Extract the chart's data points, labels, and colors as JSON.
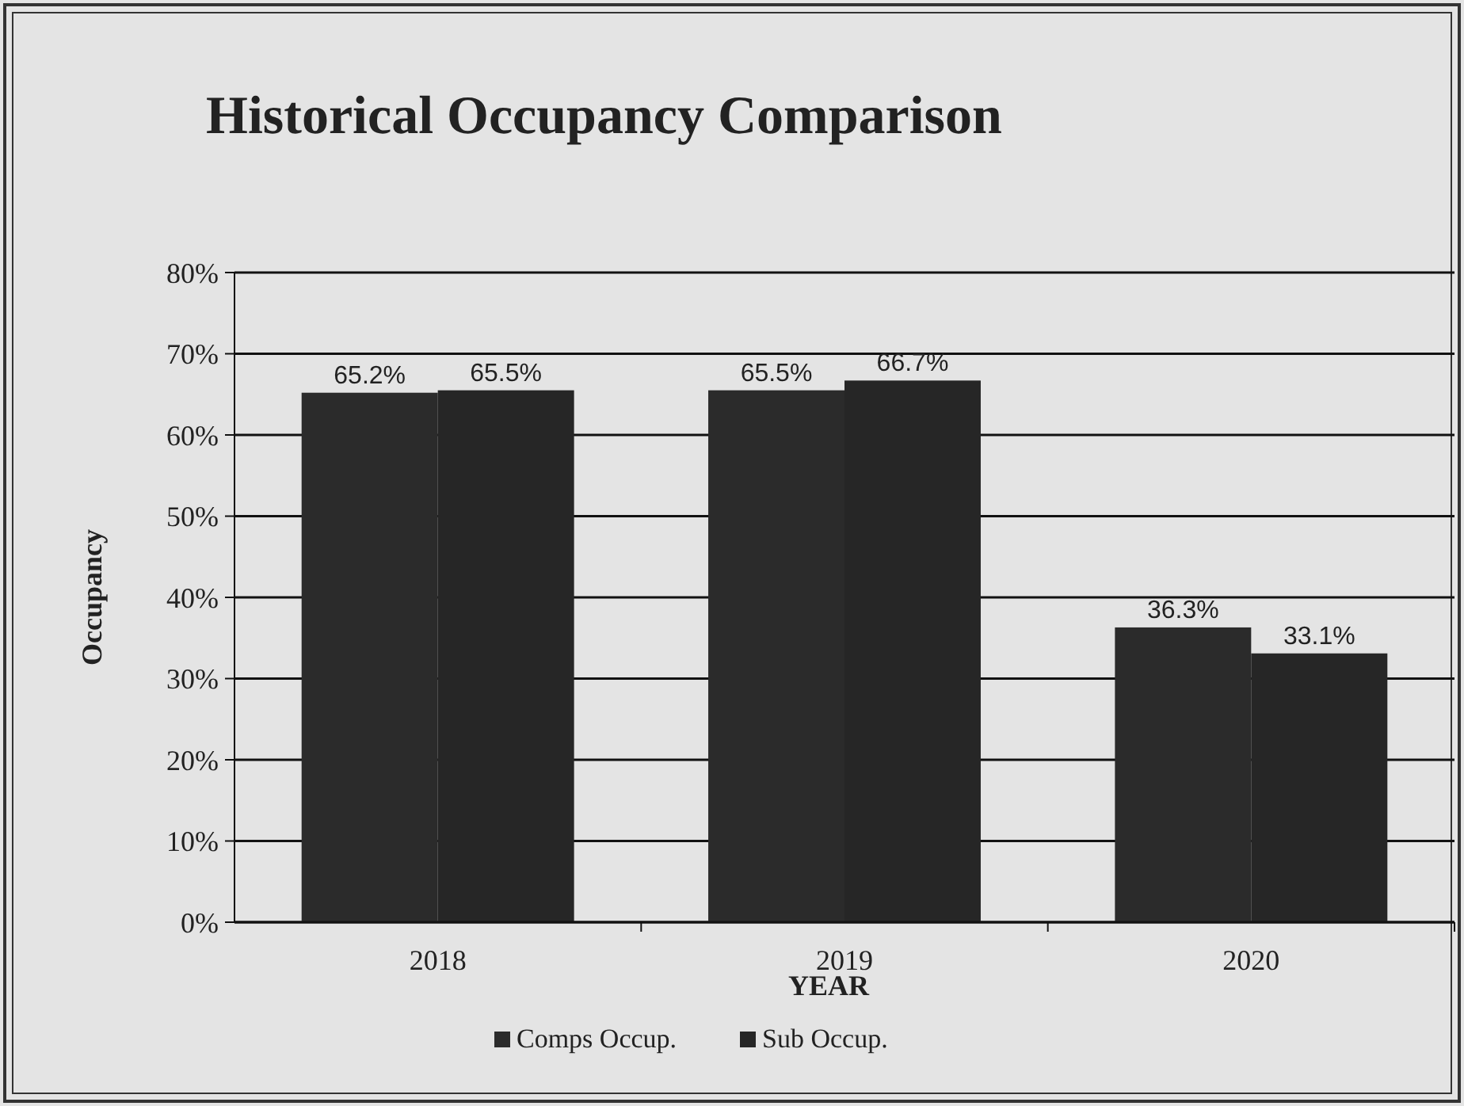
{
  "chart_data": {
    "type": "bar",
    "title": "Historical Occupancy Comparison",
    "xlabel": "YEAR",
    "ylabel": "Occupancy",
    "categories": [
      "2018",
      "2019",
      "2020"
    ],
    "series": [
      {
        "name": "Comps Occup.",
        "color": "#2b2b2b",
        "values": [
          65.2,
          65.5,
          36.3
        ],
        "value_labels": [
          "65.2%",
          "65.5%",
          "36.3%"
        ]
      },
      {
        "name": "Sub Occup.",
        "color": "#262626",
        "values": [
          65.5,
          66.7,
          33.1
        ],
        "value_labels": [
          "65.5%",
          "66.7%",
          "33.1%"
        ]
      }
    ],
    "ylim": [
      0,
      80
    ],
    "yticks": [
      {
        "value": 0,
        "label": "0%"
      },
      {
        "value": 10,
        "label": "10%"
      },
      {
        "value": 20,
        "label": "20%"
      },
      {
        "value": 30,
        "label": "30%"
      },
      {
        "value": 40,
        "label": "40%"
      },
      {
        "value": 50,
        "label": "50%"
      },
      {
        "value": 60,
        "label": "60%"
      },
      {
        "value": 70,
        "label": "70%"
      },
      {
        "value": 80,
        "label": "80%"
      }
    ],
    "grid": "y",
    "legend": "bottom"
  }
}
